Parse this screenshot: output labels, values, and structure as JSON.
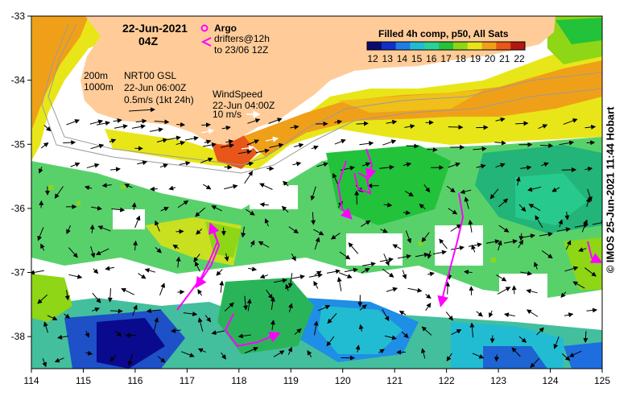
{
  "header": {
    "date": "22-Jun-2021",
    "time": "04Z"
  },
  "argo_legend": {
    "title": "Argo",
    "drifter_line1": "drifters@12h",
    "drifter_line2": "to 23/06 12Z",
    "argo_color": "#ff00ff",
    "drifter_color": "#ff00ff"
  },
  "colorbar": {
    "title": "Filled 4h comp, p50, All Sats",
    "labels": [
      "12",
      "13",
      "14",
      "15",
      "16",
      "17",
      "18",
      "19",
      "20",
      "21",
      "22"
    ],
    "stops": [
      "#0a0a6e",
      "#1030c8",
      "#1e7ee6",
      "#22bcd2",
      "#2ad296",
      "#22c23a",
      "#8ed616",
      "#e8e618",
      "#f0a018",
      "#e8561a",
      "#b01810"
    ]
  },
  "current_legend": {
    "depth1": "200m",
    "depth2": "1000m",
    "source": "NRT00 GSL",
    "time": "22-Jun 06:00Z",
    "scale": "0.5m/s (1kt 24h)"
  },
  "wind_legend": {
    "title": "WindSpeed",
    "time": "22-Jun 04:00Z",
    "scale": "10 m/s"
  },
  "axes": {
    "x_ticks": [
      "114",
      "115",
      "116",
      "117",
      "118",
      "119",
      "120",
      "121",
      "122",
      "123",
      "124",
      "125"
    ],
    "y_ticks": [
      "-33",
      "-34",
      "-35",
      "-36",
      "-37",
      "-38"
    ],
    "lon_range": [
      114,
      125
    ],
    "lat_range": [
      -38.5,
      -33
    ]
  },
  "credit": "© IMOS 25-Jun-2021 11:44 Hobart",
  "colors": {
    "land": "#ffcc99",
    "ocean_missing": "#ffffff"
  }
}
